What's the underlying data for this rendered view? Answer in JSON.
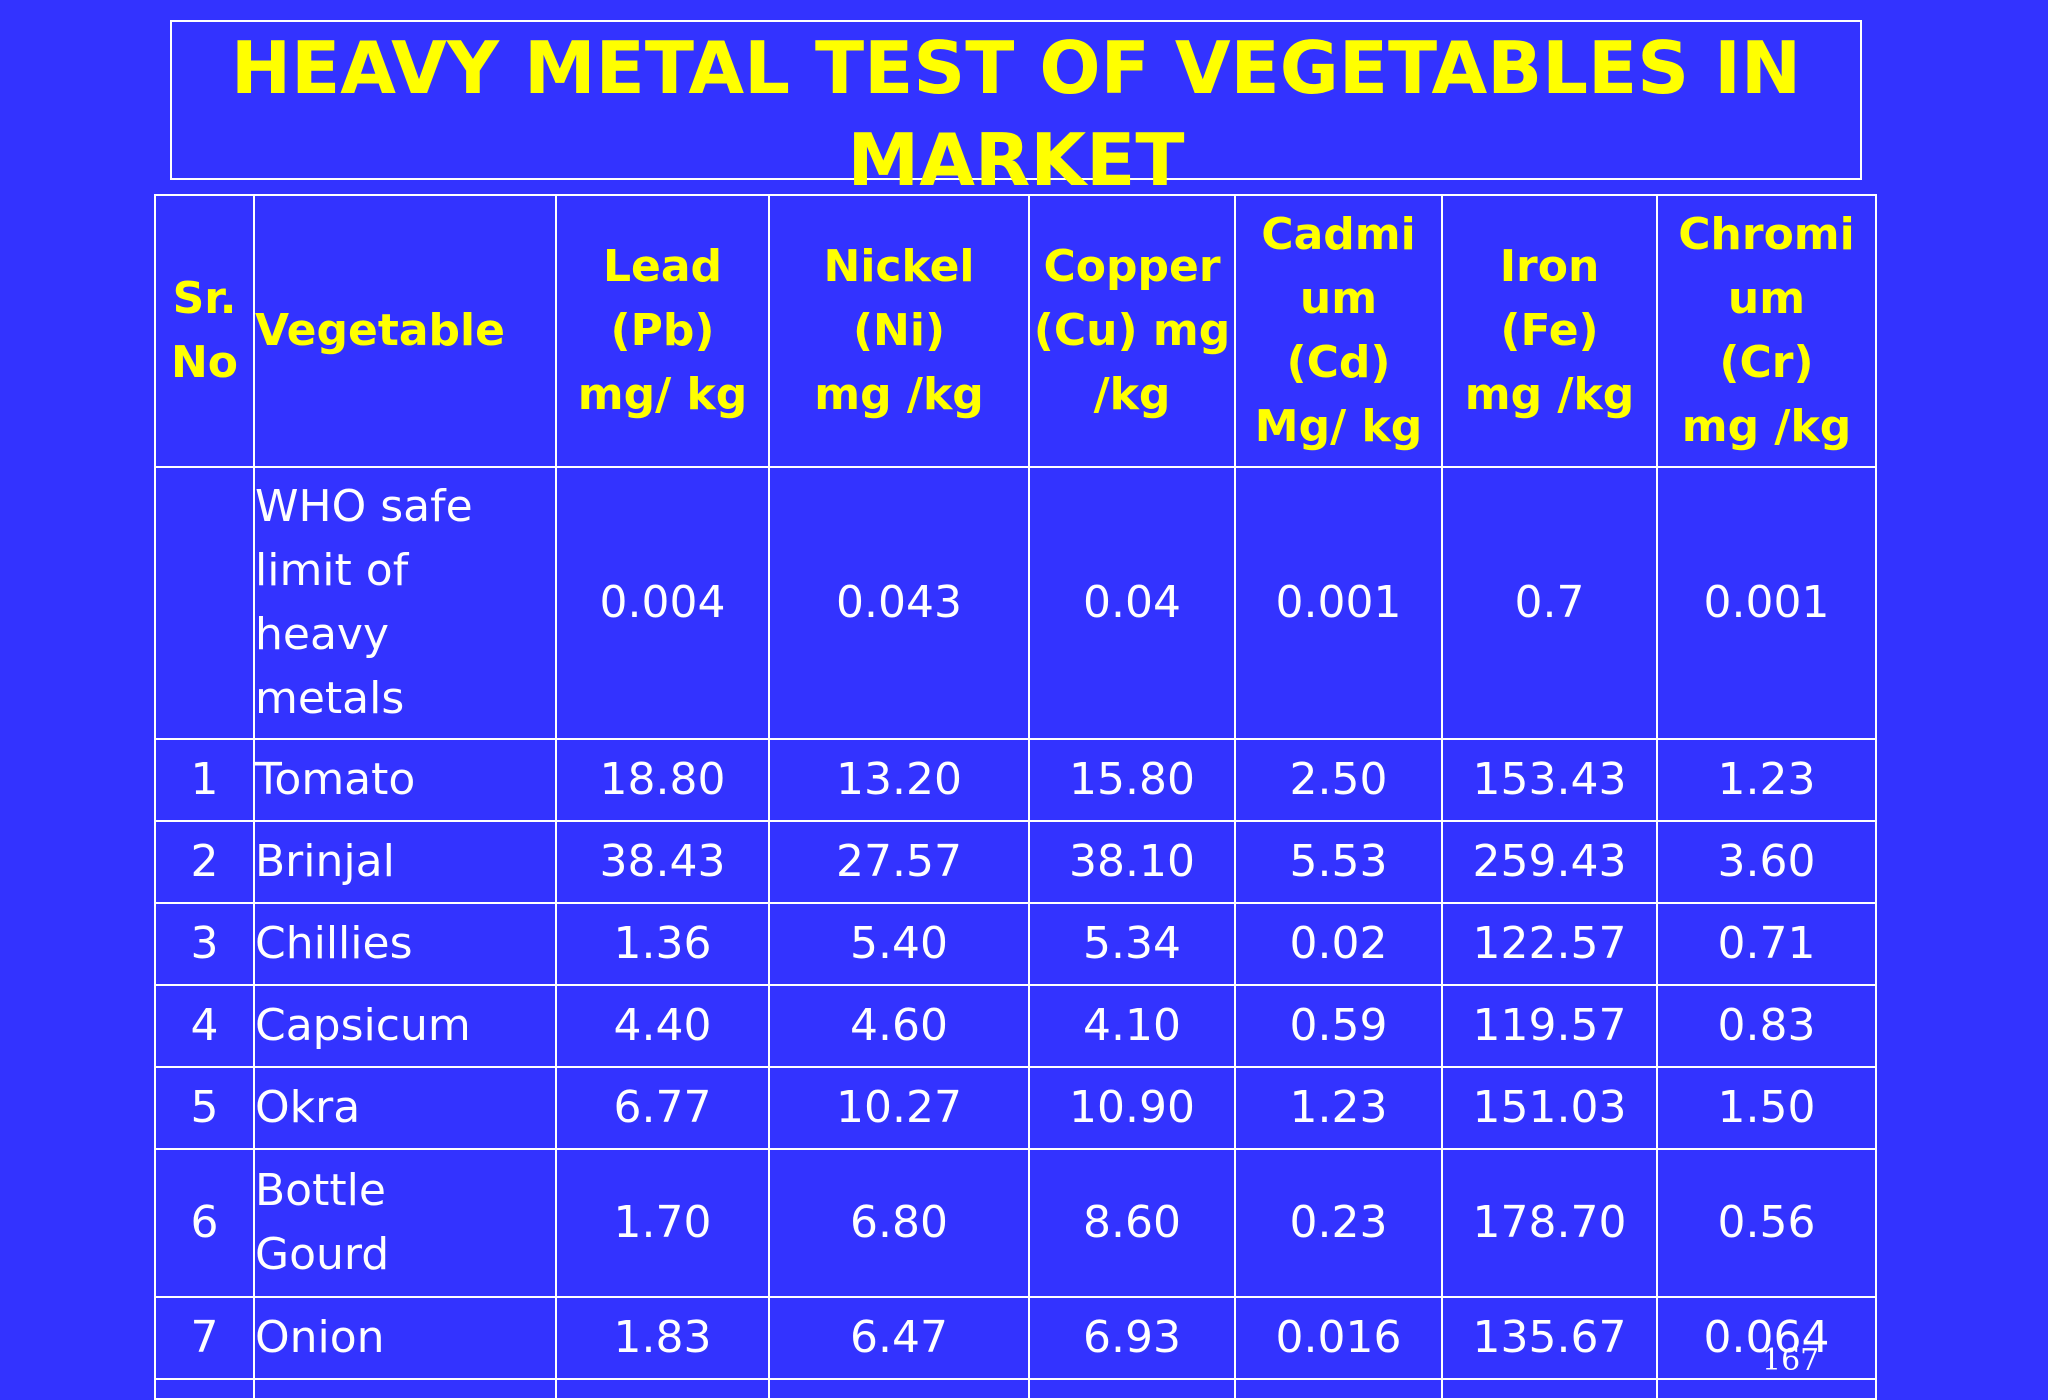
{
  "title": "HEAVY METAL TEST OF VEGETABLES IN MARKET",
  "headers": {
    "sr_no": "Sr. No",
    "vegetable": "Vegetable",
    "lead": "Lead (Pb) mg/ kg",
    "nickel": "Nickel (Ni) mg /kg",
    "copper": "Copper (Cu) mg /kg",
    "cadmium": "Cadmi um (Cd) Mg/ kg",
    "iron": "Iron (Fe) mg /kg",
    "chromium": "Chromi um (Cr) mg /kg"
  },
  "who_row": {
    "sr": "",
    "label": "WHO safe limit of heavy metals",
    "values": [
      "0.004",
      "0.043",
      "0.04",
      "0.001",
      "0.7",
      "0.001"
    ]
  },
  "rows": [
    {
      "sr": "1",
      "vegetable": "Tomato",
      "values": [
        "18.80",
        "13.20",
        "15.80",
        "2.50",
        "153.43",
        "1.23"
      ]
    },
    {
      "sr": "2",
      "vegetable": "Brinjal",
      "values": [
        "38.43",
        "27.57",
        "38.10",
        "5.53",
        "259.43",
        "3.60"
      ]
    },
    {
      "sr": "3",
      "vegetable": "Chillies",
      "values": [
        "1.36",
        "5.40",
        "5.34",
        "0.02",
        "122.57",
        "0.71"
      ]
    },
    {
      "sr": "4",
      "vegetable": "Capsicum",
      "values": [
        "4.40",
        "4.60",
        "4.10",
        "0.59",
        "119.57",
        "0.83"
      ]
    },
    {
      "sr": "5",
      "vegetable": "Okra",
      "values": [
        "6.77",
        "10.27",
        "10.90",
        "1.23",
        "151.03",
        "1.50"
      ]
    },
    {
      "sr": "6",
      "vegetable": "Bottle Gourd",
      "values": [
        "1.70",
        "6.80",
        "8.60",
        "0.23",
        "178.70",
        "0.56"
      ]
    },
    {
      "sr": "7",
      "vegetable": "Onion",
      "values": [
        "1.83",
        "6.47",
        "6.93",
        "0.016",
        "135.67",
        "0.064"
      ]
    }
  ],
  "page_number": "167",
  "colors": {
    "background": "#3333ff",
    "header_text": "#ffff00",
    "body_text": "#ffffff",
    "border": "#ffffff"
  }
}
